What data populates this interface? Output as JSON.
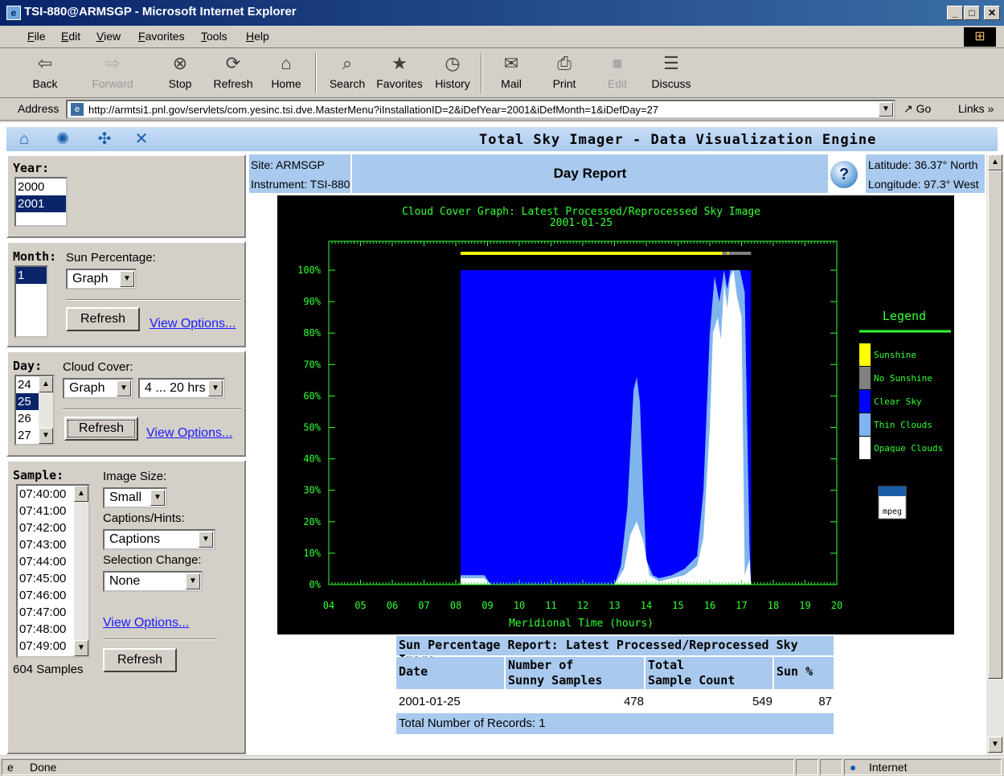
{
  "window": {
    "title": "TSI-880@ARMSGP - Microsoft Internet Explorer"
  },
  "menu": [
    "File",
    "Edit",
    "View",
    "Favorites",
    "Tools",
    "Help"
  ],
  "toolbar": {
    "back": "Back",
    "forward": "Forward",
    "stop": "Stop",
    "refresh": "Refresh",
    "home": "Home",
    "search": "Search",
    "favorites": "Favorites",
    "history": "History",
    "mail": "Mail",
    "print": "Print",
    "edit": "Edit",
    "discuss": "Discuss"
  },
  "address": {
    "label": "Address",
    "url": "http://armtsi1.pnl.gov/servlets/com.yesinc.tsi.dve.MasterMenu?iInstallationID=2&iDefYear=2001&iDefMonth=1&iDefDay=27",
    "go": "Go",
    "links": "Links"
  },
  "header": {
    "title": "Total Sky Imager - Data Visualization Engine"
  },
  "year": {
    "label": "Year:",
    "options": [
      "2000",
      "2001"
    ],
    "selected": "2001"
  },
  "month": {
    "label": "Month:",
    "selected": "1",
    "sun_label": "Sun Percentage:",
    "sun_value": "Graph",
    "refresh": "Refresh",
    "view_options": "View Options..."
  },
  "day": {
    "label": "Day:",
    "options": [
      "24",
      "25",
      "26",
      "27"
    ],
    "selected": "25",
    "cloud_label": "Cloud Cover:",
    "cloud_value": "Graph",
    "hours_value": "4 ... 20 hrs",
    "refresh": "Refresh",
    "view_options": "View Options..."
  },
  "sample": {
    "label": "Sample:",
    "options": [
      "07:40:00",
      "07:41:00",
      "07:42:00",
      "07:43:00",
      "07:44:00",
      "07:45:00",
      "07:46:00",
      "07:47:00",
      "07:48:00",
      "07:49:00"
    ],
    "count": "604 Samples",
    "image_size_label": "Image Size:",
    "image_size_value": "Small",
    "captions_label": "Captions/Hints:",
    "captions_value": "Captions",
    "selection_label": "Selection Change:",
    "selection_value": "None",
    "view_options": "View Options...",
    "refresh": "Refresh"
  },
  "report": {
    "site": "Site: ARMSGP",
    "instrument": "Instrument: TSI-880",
    "title": "Day Report",
    "latitude": "Latitude: 36.37° North",
    "longitude": "Longitude: 97.3° West"
  },
  "chart_data": {
    "type": "area",
    "title": "Cloud Cover Graph: Latest Processed/Reprocessed Sky Image",
    "subtitle": "2001-01-25",
    "xlabel": "Meridional Time (hours)",
    "xlim": [
      4,
      20
    ],
    "ylim": [
      0,
      100
    ],
    "x_ticks": [
      "04",
      "05",
      "06",
      "07",
      "08",
      "09",
      "10",
      "11",
      "12",
      "13",
      "14",
      "15",
      "16",
      "17",
      "18",
      "19",
      "20"
    ],
    "y_ticks": [
      "0%",
      "10%",
      "20%",
      "30%",
      "40%",
      "50%",
      "60%",
      "70%",
      "80%",
      "90%",
      "100%"
    ],
    "legend_title": "Legend",
    "legend": [
      {
        "name": "Sunshine",
        "color": "#ffff00"
      },
      {
        "name": "No Sunshine",
        "color": "#808080"
      },
      {
        "name": "Clear Sky",
        "color": "#0000ff"
      },
      {
        "name": "Thin Clouds",
        "color": "#80b4ee"
      },
      {
        "name": "Opaque Clouds",
        "color": "#ffffff"
      }
    ],
    "data_range": [
      8.15,
      17.3
    ],
    "sun_bar": [
      {
        "from": 8.15,
        "to": 16.4,
        "state": "Sunshine"
      },
      {
        "from": 16.4,
        "to": 16.55,
        "state": "No Sunshine"
      },
      {
        "from": 16.55,
        "to": 16.6,
        "state": "Sunshine"
      },
      {
        "from": 16.6,
        "to": 17.3,
        "state": "No Sunshine"
      }
    ],
    "opaque_series": {
      "x": [
        8.15,
        8.9,
        9.1,
        13.0,
        13.3,
        13.5,
        13.7,
        13.9,
        14.1,
        14.4,
        14.8,
        15.2,
        15.6,
        15.8,
        16.0,
        16.1,
        16.25,
        16.35,
        16.45,
        16.55,
        16.65,
        16.75,
        16.85,
        17.0,
        17.1,
        17.25,
        17.3
      ],
      "y": [
        2,
        2,
        0,
        0,
        5,
        16,
        20,
        14,
        3,
        1,
        2,
        3,
        6,
        15,
        50,
        80,
        85,
        78,
        96,
        88,
        98,
        100,
        92,
        85,
        3,
        8,
        0
      ]
    },
    "thin_series": {
      "x": [
        8.15,
        8.9,
        9.1,
        13.0,
        13.2,
        13.4,
        13.6,
        13.7,
        13.8,
        13.9,
        14.0,
        14.2,
        14.4,
        14.8,
        15.2,
        15.6,
        15.8,
        16.0,
        16.15,
        16.3,
        16.45,
        16.55,
        16.65,
        16.8,
        16.95,
        17.1,
        17.25,
        17.3
      ],
      "y": [
        3,
        3,
        0,
        0,
        6,
        24,
        62,
        66,
        58,
        30,
        8,
        3,
        2,
        3,
        5,
        9,
        30,
        80,
        98,
        90,
        100,
        94,
        100,
        100,
        100,
        93,
        12,
        0
      ]
    },
    "grid": false
  },
  "sun_report": {
    "title": "Sun Percentage Report: Latest Processed/Reprocessed Sky Image",
    "col_date": "Date",
    "col_sunny_1": "Number of",
    "col_sunny_2": "Sunny Samples",
    "col_total_1": "Total",
    "col_total_2": "Sample Count",
    "col_sun": "Sun %",
    "rows": [
      {
        "date": "2001-01-25",
        "sunny": "478",
        "total": "549",
        "sun": "87"
      }
    ],
    "footer": "Total Number of Records: 1"
  },
  "status": {
    "text": "Done",
    "zone": "Internet"
  }
}
